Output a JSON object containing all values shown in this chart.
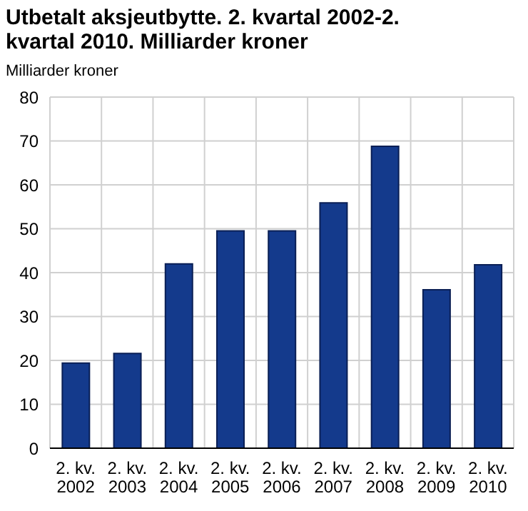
{
  "chart_data": {
    "type": "bar",
    "title": "Utbetalt aksjeutbytte. 2. kvartal 2002-2. kvartal 2010. Milliarder kroner",
    "ylabel": "Milliarder kroner",
    "categories": [
      "2. kv. 2002",
      "2. kv. 2003",
      "2. kv. 2004",
      "2. kv. 2005",
      "2. kv. 2006",
      "2. kv. 2007",
      "2. kv. 2008",
      "2. kv. 2009",
      "2. kv. 2010"
    ],
    "values": [
      19.4,
      21.6,
      42.0,
      49.5,
      49.5,
      55.9,
      68.8,
      36.1,
      41.8
    ],
    "color": "#143a8c",
    "ylim": [
      0,
      80
    ],
    "yticks": [
      0,
      10,
      20,
      30,
      40,
      50,
      60,
      70,
      80
    ],
    "grid": true
  }
}
